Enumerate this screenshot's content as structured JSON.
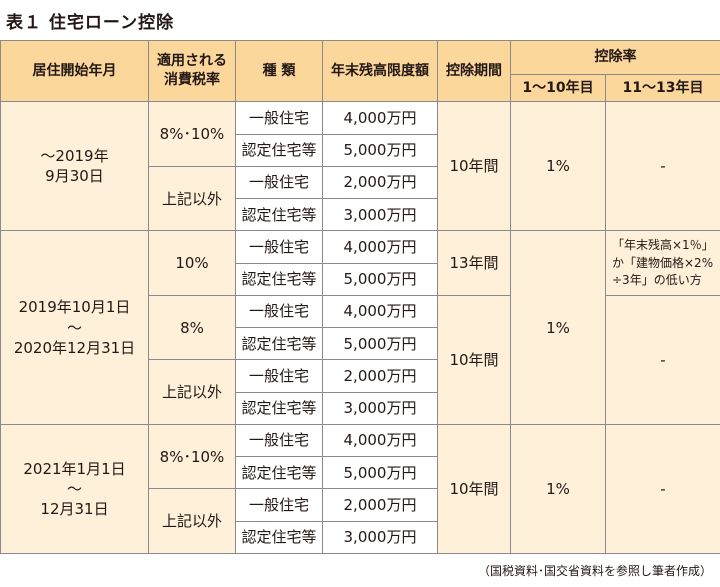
{
  "title": "表１ 住宅ローン控除",
  "headers": {
    "period": "居住開始年月",
    "tax": "適用される\n消費税率",
    "type": "種 類",
    "limit": "年末残高限度額",
    "deduction_period": "控除期間",
    "rate": "控除率",
    "rate_1_10": "1〜10年目",
    "rate_11_13": "11〜13年目"
  },
  "blocks": [
    {
      "period": "〜2019年\n9月30日",
      "tax_groups": [
        {
          "tax": "8%･10%",
          "rows": [
            {
              "type": "一般住宅",
              "limit": "4,000万円"
            },
            {
              "type": "認定住宅等",
              "limit": "5,000万円"
            }
          ]
        },
        {
          "tax": "上記以外",
          "rows": [
            {
              "type": "一般住宅",
              "limit": "2,000万円"
            },
            {
              "type": "認定住宅等",
              "limit": "3,000万円"
            }
          ]
        }
      ],
      "deduction_period": "10年間",
      "rate_1_10": "1%",
      "rate_11_13": "-"
    },
    {
      "period": "2019年10月1日\n〜\n2020年12月31日",
      "tax_groups": [
        {
          "tax": "10%",
          "rows": [
            {
              "type": "一般住宅",
              "limit": "4,000万円"
            },
            {
              "type": "認定住宅等",
              "limit": "5,000万円"
            }
          ]
        },
        {
          "tax": "8%",
          "rows": [
            {
              "type": "一般住宅",
              "limit": "4,000万円"
            },
            {
              "type": "認定住宅等",
              "limit": "5,000万円"
            }
          ]
        },
        {
          "tax": "上記以外",
          "rows": [
            {
              "type": "一般住宅",
              "limit": "2,000万円"
            },
            {
              "type": "認定住宅等",
              "limit": "3,000万円"
            }
          ]
        }
      ],
      "deduction_period_13": "13年間",
      "deduction_period_10": "10年間",
      "rate_1_10": "1%",
      "rate_11_13_note": "「年末残高×1％」\nか「建物価格×2%\n÷3年」の低い方",
      "rate_11_13": "-"
    },
    {
      "period": "2021年1月1日\n〜\n12月31日",
      "tax_groups": [
        {
          "tax": "8%･10%",
          "rows": [
            {
              "type": "一般住宅",
              "limit": "4,000万円"
            },
            {
              "type": "認定住宅等",
              "limit": "5,000万円"
            }
          ]
        },
        {
          "tax": "上記以外",
          "rows": [
            {
              "type": "一般住宅",
              "limit": "2,000万円"
            },
            {
              "type": "認定住宅等",
              "limit": "3,000万円"
            }
          ]
        }
      ],
      "deduction_period": "10年間",
      "rate_1_10": "1%",
      "rate_11_13": "-"
    }
  ],
  "source": "（国税資料･国交省資料を参照し筆者作成）",
  "colors": {
    "header": "#fbd79c",
    "body": "#fef0d9",
    "border": "#8a8a8a"
  }
}
